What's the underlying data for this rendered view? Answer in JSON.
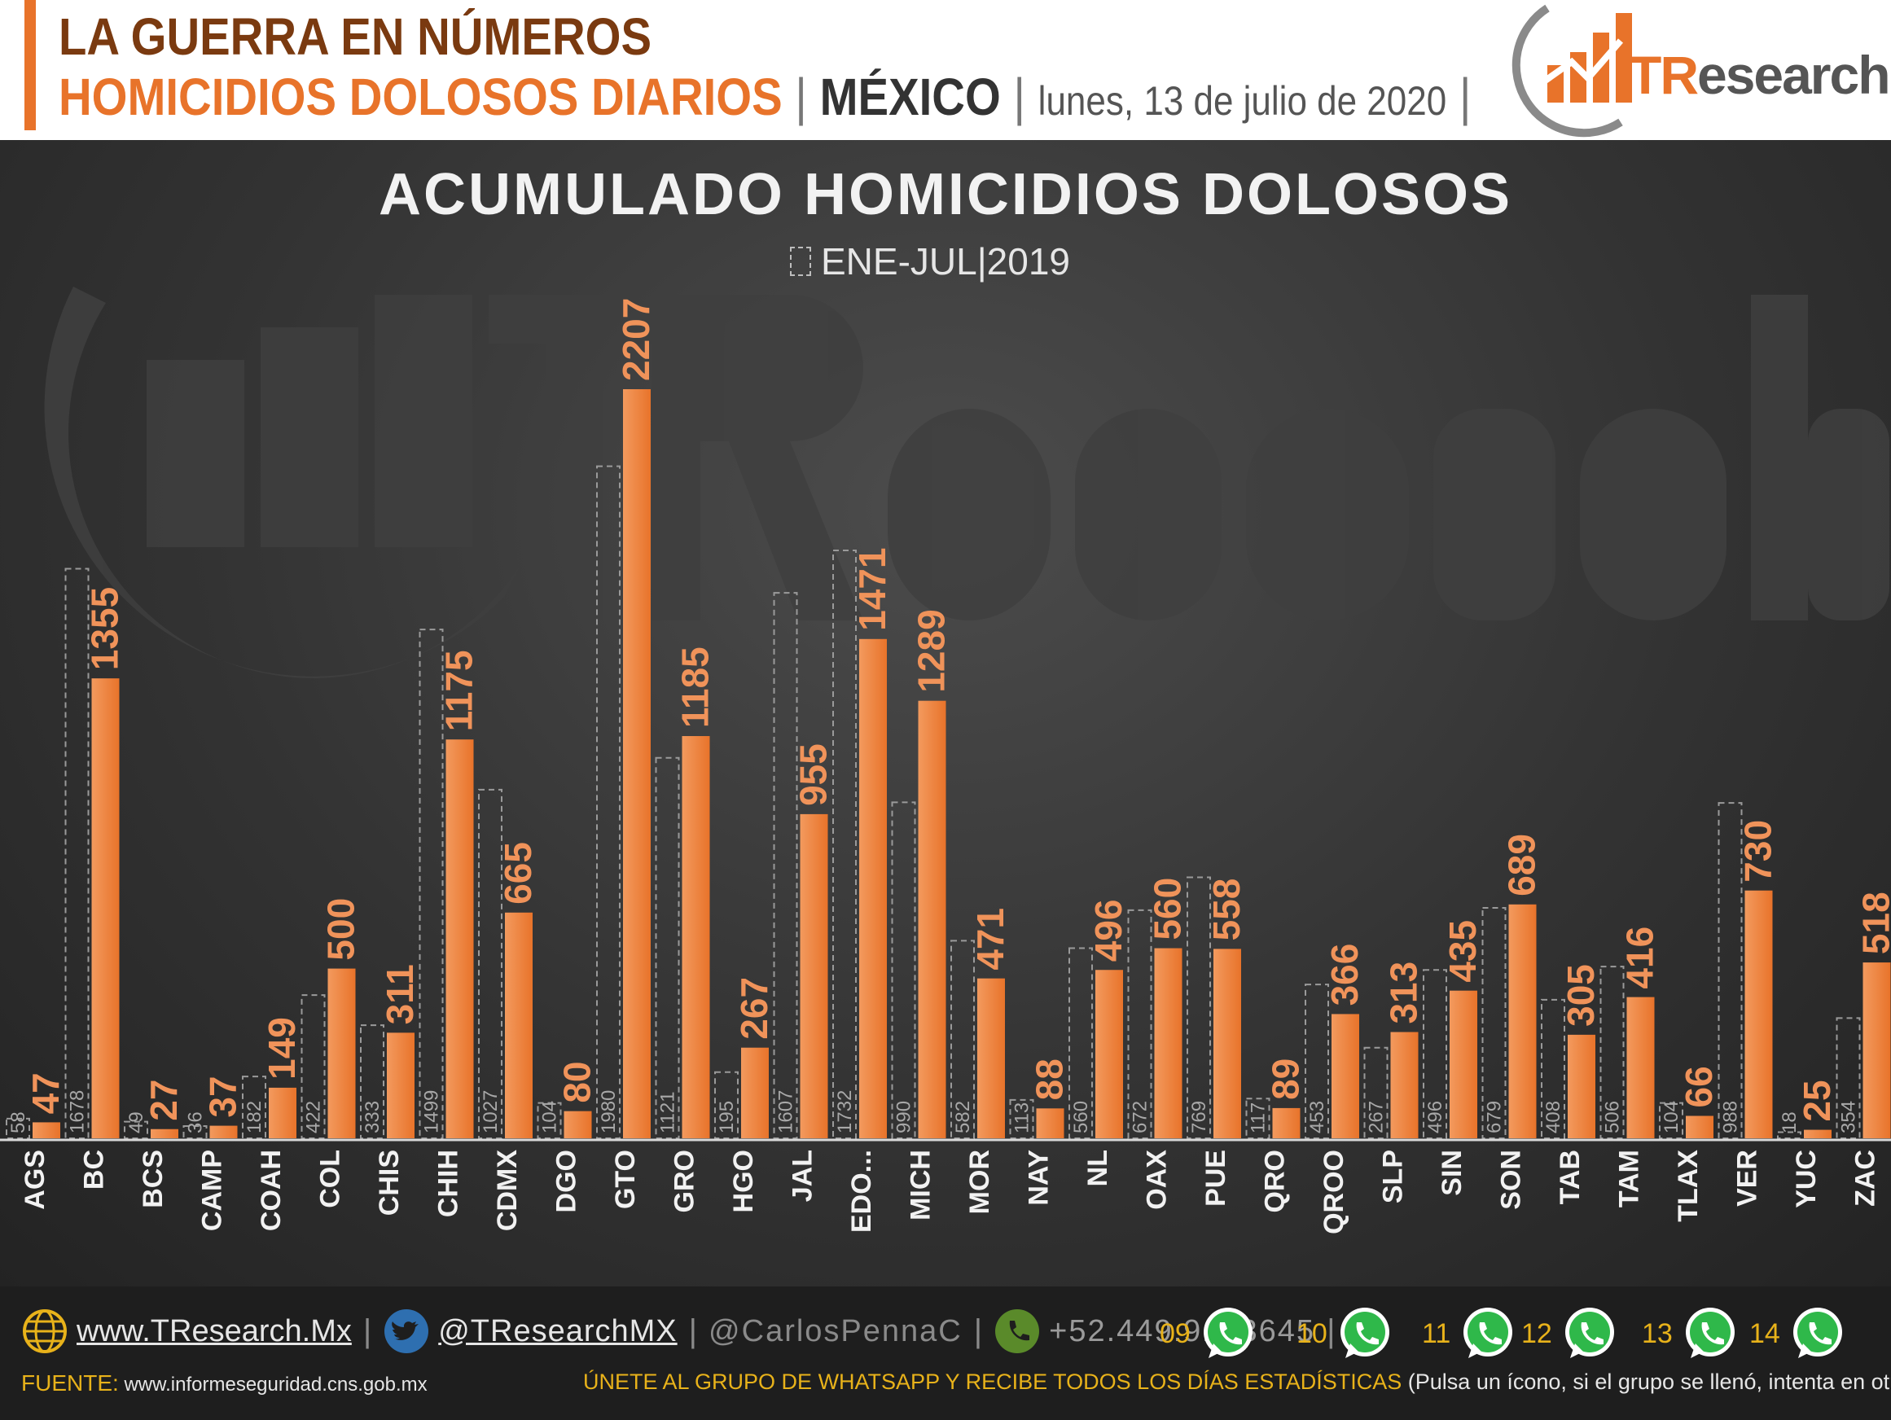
{
  "header": {
    "line1": "LA GUERRA EN NÚMEROS",
    "subtitle": "HOMICIDIOS DOLOSOS DIARIOS",
    "separator": "|",
    "country": "MÉXICO",
    "date": "lunes, 13 de julio de 2020",
    "logo_t": "TR",
    "logo_rest": "esearch",
    "logo_icon": "bar-chart-arrow-logo"
  },
  "colors": {
    "accent": "#e8732a",
    "bar": "#e8732a",
    "bar_light": "#f39a5e",
    "panel": "#363636",
    "footer_text": "#e8b21a"
  },
  "chart_data": {
    "type": "bar",
    "title": "ACUMULADO HOMICIDIOS DOLOSOS",
    "legend": [
      {
        "name": "ENE-JUL|2019",
        "style": "dashed-outline"
      }
    ],
    "categories": [
      "AGS",
      "BC",
      "BCS",
      "CAMP",
      "COAH",
      "COL",
      "CHIS",
      "CHIH",
      "CDMX",
      "DGO",
      "GTO",
      "GRO",
      "HGO",
      "JAL",
      "EDO...",
      "MICH",
      "MOR",
      "NAY",
      "NL",
      "OAX",
      "PUE",
      "QRO",
      "QROO",
      "SLP",
      "SIN",
      "SON",
      "TAB",
      "TAM",
      "TLAX",
      "VER",
      "YUC",
      "ZAC"
    ],
    "series": [
      {
        "name": "ENE-JUL|2019",
        "values": [
          58,
          1678,
          49,
          36,
          182,
          422,
          333,
          1499,
          1027,
          104,
          1980,
          1121,
          195,
          1607,
          1732,
          990,
          582,
          113,
          560,
          672,
          769,
          117,
          453,
          267,
          496,
          679,
          408,
          506,
          104,
          988,
          18,
          354
        ]
      },
      {
        "values": [
          47,
          1355,
          27,
          37,
          149,
          500,
          311,
          1175,
          665,
          80,
          2207,
          1185,
          267,
          955,
          1471,
          1289,
          471,
          88,
          496,
          560,
          558,
          89,
          366,
          313,
          435,
          689,
          305,
          416,
          66,
          730,
          25,
          518
        ]
      }
    ],
    "ylim": [
      0,
      2207
    ],
    "grid": false
  },
  "footer": {
    "web": "www.TResearch.Mx",
    "twitter": "@TResearchMX",
    "user": "@CarlosPennaC",
    "phone": "+52.449.9193645",
    "separator": "|",
    "whatsapp_groups": [
      "09",
      "10",
      "11",
      "12",
      "13",
      "14"
    ],
    "fuente_label": "FUENTE:",
    "fuente_url": "www.informeseguridad.cns.gob.mx",
    "join_main": "ÚNETE AL GRUPO DE WHATSAPP Y RECIBE TODOS LOS DÍAS ESTADÍSTICAS",
    "join_note": "(Pulsa un ícono, si el grupo se llenó, intenta en otro)",
    "icons": [
      "globe-icon",
      "twitter-icon",
      "whatsapp-icon"
    ]
  }
}
